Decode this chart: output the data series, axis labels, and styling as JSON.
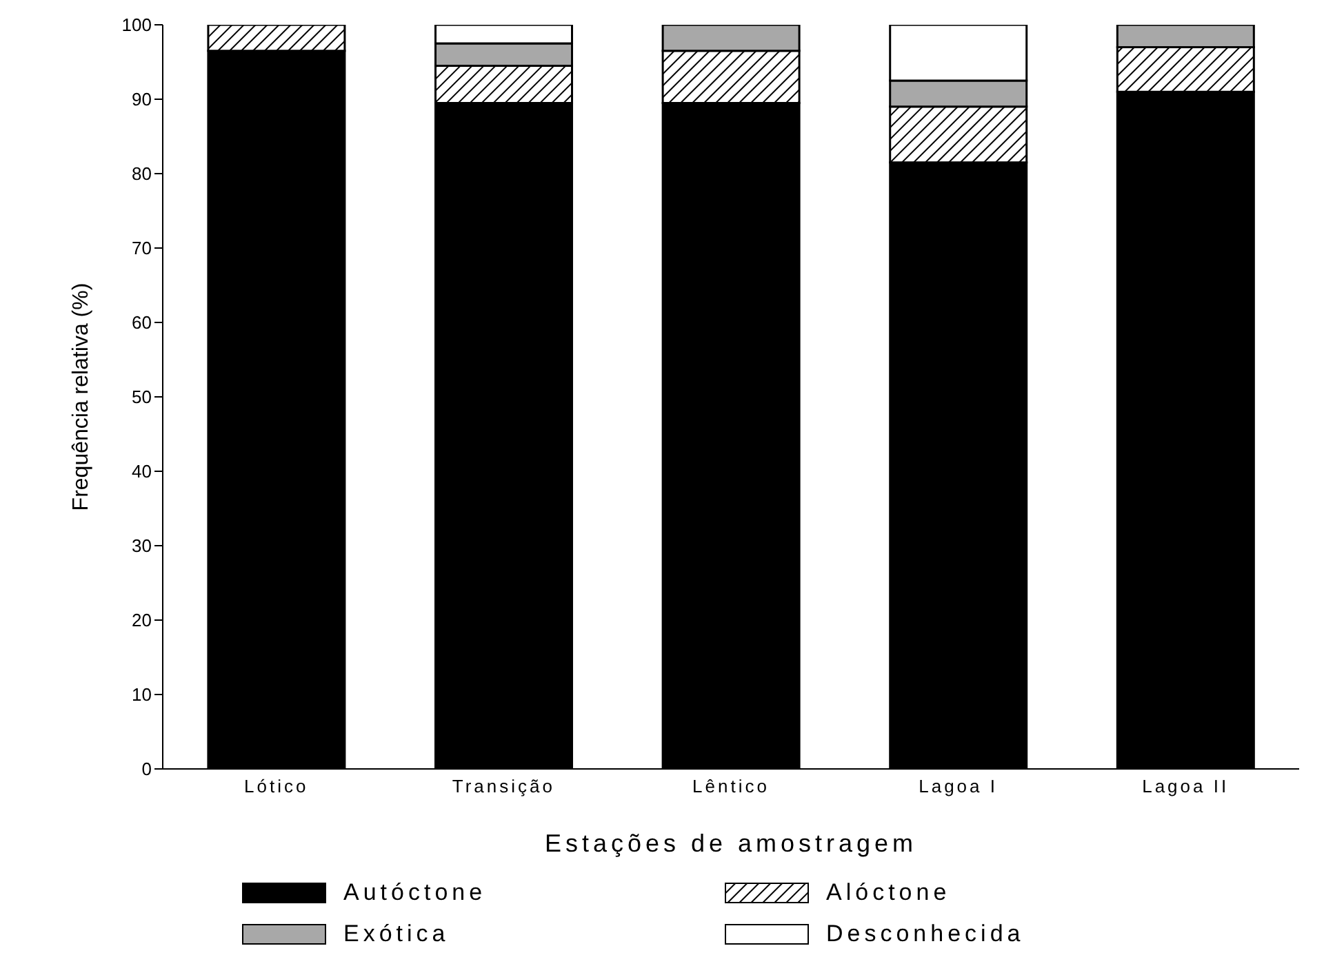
{
  "chart_data": {
    "type": "bar",
    "stacked": true,
    "xlabel": "Estações de amostragem",
    "ylabel": "Frequência relativa (%)",
    "categories": [
      "Lótico",
      "Transição",
      "Lêntico",
      "Lagoa I",
      "Lagoa II"
    ],
    "series": [
      {
        "name": "Autóctone",
        "color": "#000000",
        "values": [
          96.5,
          89.5,
          89.5,
          81.5,
          91
        ]
      },
      {
        "name": "Alóctone",
        "color": "#000000",
        "values": [
          3.5,
          5,
          7,
          7.5,
          6
        ]
      },
      {
        "name": "Exótica",
        "color": "#a8a8a8",
        "values": [
          null,
          3,
          3.5,
          3.5,
          3
        ]
      },
      {
        "name": "Desconhecida",
        "color": "#ffffff",
        "values": [
          null,
          2.5,
          null,
          7.5,
          null
        ]
      }
    ],
    "ylim": [
      0,
      100
    ],
    "yticks": [
      0,
      10,
      20,
      30,
      40,
      50,
      60,
      70,
      80,
      90,
      100
    ],
    "grid": false,
    "legend": "bottom"
  }
}
